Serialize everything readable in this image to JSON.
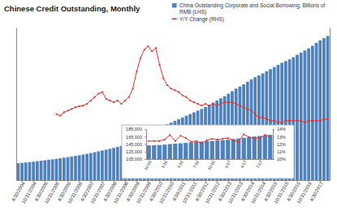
{
  "chart_data": [
    {
      "type": "bar",
      "title": "Chinese Credit Outstanding, Monthly",
      "legend": "top-right",
      "tick_labels": "x",
      "categories": [
        null,
        "4/30/2004",
        null,
        null,
        "10/31/2004",
        null,
        null,
        "4/30/2005",
        null,
        null,
        "10/31/2005",
        null,
        null,
        "4/30/2006",
        null,
        null,
        "10/31/2006",
        null,
        null,
        "4/30/2007",
        null,
        null,
        "10/31/2007",
        null,
        null,
        "4/30/2008",
        null,
        null,
        "10/31/2008",
        null,
        null,
        "4/30/2009",
        null,
        null,
        "10/31/2009",
        null,
        null,
        "4/30/2010",
        null,
        null,
        "10/31/2010",
        null,
        null,
        "4/30/2011",
        null,
        null,
        "10/31/2011",
        null,
        null,
        "4/30/2012",
        null,
        null,
        "10/31/2012",
        null,
        null,
        "4/30/2013",
        null,
        null,
        "10/31/2013",
        null,
        null,
        "4/30/2014",
        null,
        null,
        "10/31/2014",
        null,
        null,
        "4/30/2015",
        null,
        null,
        "10/31/2015",
        null,
        null,
        "4/30/2016",
        null,
        null,
        "10/31/2016",
        null,
        null,
        "4/30/2017",
        null,
        null
      ],
      "series": [
        {
          "name": "China Outstanding Corporate and Social Borrowing, Billions of RMB (LHS)",
          "type": "bar",
          "color": "#4f81bd",
          "values": [
            20000,
            20400,
            20900,
            21300,
            21800,
            22400,
            23000,
            23500,
            24100,
            24600,
            25200,
            25800,
            26500,
            27200,
            27900,
            28700,
            29400,
            30200,
            31000,
            32000,
            33000,
            34000,
            35000,
            36000,
            37000,
            38000,
            39200,
            40300,
            41500,
            42600,
            44000,
            47500,
            51000,
            53500,
            55500,
            57200,
            59000,
            61300,
            63600,
            65800,
            67900,
            70000,
            72000,
            74000,
            76100,
            78000,
            80000,
            82000,
            84000,
            86500,
            89000,
            91500,
            94000,
            96500,
            99000,
            102000,
            105000,
            108000,
            110500,
            113000,
            116000,
            119000,
            121500,
            123500,
            126000,
            128500,
            131000,
            133500,
            136000,
            138500,
            140500,
            142500,
            145000,
            148000,
            150500,
            153000,
            155500,
            158500,
            162000,
            165000,
            167500,
            170000
          ]
        },
        {
          "name": "Y/Y Change (RHS)",
          "type": "line",
          "color": "#e8312b",
          "axis": "y2",
          "marker": "circle",
          "values": [
            null,
            null,
            null,
            null,
            null,
            null,
            null,
            null,
            null,
            null,
            14.5,
            14.0,
            15.0,
            15.5,
            16.0,
            16.5,
            16.8,
            17.0,
            17.5,
            18.5,
            19.5,
            20.5,
            21.0,
            19.0,
            18.5,
            18.0,
            18.5,
            17.5,
            18.5,
            19.5,
            22.0,
            27.0,
            31.0,
            33.5,
            34.5,
            33.0,
            34.0,
            29.0,
            25.0,
            23.0,
            22.0,
            21.5,
            21.0,
            20.0,
            19.5,
            18.5,
            18.0,
            17.5,
            17.0,
            17.5,
            17.0,
            17.5,
            17.0,
            17.5,
            18.0,
            18.0,
            18.0,
            17.5,
            17.0,
            16.5,
            16.0,
            15.5,
            14.5,
            13.5,
            13.5,
            13.0,
            12.5,
            12.5,
            12.0,
            12.0,
            12.5,
            12.5,
            12.5,
            12.5,
            12.5,
            12.0,
            12.5,
            12.5,
            12.5,
            12.5,
            13.0,
            13.0
          ]
        }
      ],
      "ylim": [
        0,
        180000
      ],
      "y2lim": [
        -5,
        40
      ]
    },
    {
      "type": "bar",
      "categories": [
        "10/15",
        null,
        null,
        "1/16",
        null,
        null,
        "4/16",
        null,
        null,
        "7/16",
        null,
        null,
        "10/16",
        null,
        null,
        "1/17",
        null,
        null,
        "4/17",
        null,
        null,
        "7/17",
        null,
        null
      ],
      "series": [
        {
          "type": "bar",
          "color": "#4f81bd",
          "values": [
            141500,
            142000,
            142500,
            143500,
            145000,
            146000,
            147000,
            148000,
            149500,
            150500,
            151500,
            152500,
            153500,
            154500,
            155500,
            156500,
            158500,
            160000,
            161500,
            163000,
            165000,
            166500,
            168000,
            169500
          ]
        },
        {
          "type": "line",
          "color": "#e8312b",
          "axis": "y2",
          "marker": "circle",
          "values": [
            12.4,
            12.4,
            12.4,
            12.6,
            13.2,
            12.4,
            13.1,
            12.8,
            12.3,
            12.4,
            12.1,
            12.5,
            12.7,
            12.6,
            12.7,
            12.8,
            12.5,
            12.3,
            13.3,
            12.9,
            12.8,
            12.8,
            13.2,
            13.0
          ]
        }
      ],
      "ylim": [
        105000,
        185000
      ],
      "yticks": [
        {
          "value": 105000,
          "label": "105,000"
        },
        {
          "value": 125000,
          "label": "125,000"
        },
        {
          "value": 145000,
          "label": "145,000"
        },
        {
          "value": 165000,
          "label": "165,000"
        },
        {
          "value": 185000,
          "label": "185,000"
        }
      ],
      "y2lim": [
        10,
        14
      ],
      "y2ticks": [
        {
          "value": 10,
          "label": "10%"
        },
        {
          "value": 11,
          "label": "11%"
        },
        {
          "value": 12,
          "label": "12%"
        },
        {
          "value": 13,
          "label": "13%"
        },
        {
          "value": 14,
          "label": "14%"
        }
      ]
    }
  ]
}
